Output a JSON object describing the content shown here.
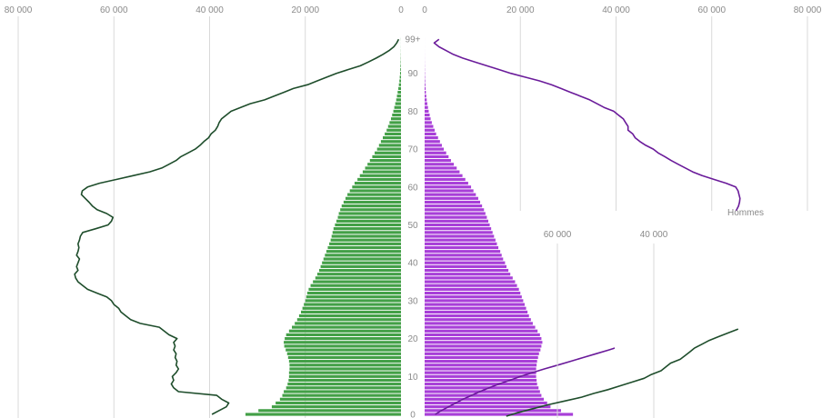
{
  "colors": {
    "women_bars": "#43a047",
    "men_bars": "#a83fd8",
    "women_line": "#1e4d2b",
    "men_line": "#6a1b9a",
    "grid": "#d9d9d9",
    "tick_text": "#8a8a8a"
  },
  "chart_data": {
    "type": "bar",
    "orientation": "horizontal-population-pyramid",
    "x_ticks_left": [
      "80 000",
      "60 000",
      "40 000",
      "20 000",
      "0"
    ],
    "x_ticks_right": [
      "0",
      "20 000",
      "40 000",
      "60 000",
      "80 000"
    ],
    "age_ticks": [
      "0",
      "10",
      "20",
      "30",
      "40",
      "50",
      "60",
      "70",
      "80",
      "90",
      "99+"
    ],
    "xlim": [
      0,
      80000
    ],
    "age_range": [
      0,
      99
    ],
    "inset_cut": {
      "label": "Hommes",
      "ticks": [
        "60 000",
        "40 000"
      ]
    },
    "series": [
      {
        "side": "left",
        "kind": "bars",
        "values": [
          32500,
          29800,
          27000,
          26200,
          25300,
          24800,
          24500,
          24000,
          23700,
          23500,
          23400,
          23400,
          23300,
          23300,
          23400,
          23600,
          23800,
          24100,
          24400,
          24500,
          24300,
          24000,
          23400,
          22800,
          22200,
          21700,
          21300,
          20900,
          20600,
          20300,
          20000,
          19800,
          19600,
          19300,
          18900,
          18400,
          17900,
          17500,
          17100,
          16800,
          16500,
          16200,
          15900,
          15600,
          15300,
          15000,
          14700,
          14500,
          14300,
          14100,
          13800,
          13500,
          13200,
          13000,
          12700,
          12400,
          12000,
          11600,
          11200,
          10700,
          10200,
          9700,
          9100,
          8600,
          8000,
          7500,
          7000,
          6500,
          6000,
          5500,
          5000,
          4600,
          4200,
          3800,
          3400,
          3000,
          2700,
          2400,
          2100,
          1850,
          1600,
          1400,
          1200,
          1000,
          850,
          700,
          560,
          440,
          340,
          260,
          200,
          150,
          110,
          80,
          55,
          38,
          25,
          15,
          8,
          20
        ]
      },
      {
        "side": "right",
        "kind": "bars",
        "values": [
          31000,
          28500,
          26300,
          25600,
          24900,
          24400,
          24100,
          23800,
          23500,
          23400,
          23300,
          23300,
          23300,
          23400,
          23500,
          23700,
          23900,
          24200,
          24400,
          24600,
          24400,
          24100,
          23600,
          23100,
          22600,
          22200,
          21800,
          21500,
          21200,
          20900,
          20600,
          20300,
          20000,
          19700,
          19300,
          18900,
          18400,
          17900,
          17500,
          17100,
          16800,
          16400,
          16100,
          15800,
          15400,
          15100,
          14800,
          14500,
          14200,
          13900,
          13600,
          13300,
          13000,
          12700,
          12400,
          12000,
          11600,
          11200,
          10700,
          10200,
          9700,
          9100,
          8500,
          7900,
          7300,
          6700,
          6100,
          5500,
          5000,
          4500,
          4000,
          3600,
          3200,
          2800,
          2400,
          2100,
          1800,
          1500,
          1250,
          1050,
          850,
          700,
          560,
          440,
          340,
          260,
          200,
          150,
          110,
          80,
          58,
          40,
          28,
          18,
          12,
          8,
          5,
          3,
          2,
          3
        ]
      },
      {
        "side": "left",
        "kind": "line",
        "points": [
          [
            39500,
            0
          ],
          [
            38000,
            1
          ],
          [
            36500,
            2
          ],
          [
            36000,
            3
          ],
          [
            37500,
            4
          ],
          [
            38500,
            5
          ],
          [
            46500,
            6
          ],
          [
            47500,
            7
          ],
          [
            48000,
            8
          ],
          [
            47500,
            9
          ],
          [
            47800,
            10
          ],
          [
            47000,
            11
          ],
          [
            46500,
            12
          ],
          [
            47000,
            13
          ],
          [
            46800,
            14
          ],
          [
            47200,
            15
          ],
          [
            47000,
            16
          ],
          [
            47500,
            17
          ],
          [
            47200,
            18
          ],
          [
            47500,
            19
          ],
          [
            46800,
            20
          ],
          [
            48500,
            21
          ],
          [
            49500,
            22
          ],
          [
            50500,
            23
          ],
          [
            54500,
            24
          ],
          [
            56500,
            25
          ],
          [
            57500,
            26
          ],
          [
            58500,
            27
          ],
          [
            59000,
            28
          ],
          [
            60000,
            29
          ],
          [
            60500,
            30
          ],
          [
            61500,
            31
          ],
          [
            63500,
            32
          ],
          [
            65500,
            33
          ],
          [
            66500,
            34
          ],
          [
            67500,
            35
          ],
          [
            68000,
            36
          ],
          [
            68200,
            37
          ],
          [
            67500,
            38
          ],
          [
            67800,
            39
          ],
          [
            67500,
            40
          ],
          [
            67200,
            41
          ],
          [
            67800,
            42
          ],
          [
            67500,
            43
          ],
          [
            67300,
            44
          ],
          [
            67500,
            45
          ],
          [
            67200,
            46
          ],
          [
            67000,
            47
          ],
          [
            66500,
            48
          ],
          [
            63800,
            49
          ],
          [
            61200,
            50
          ],
          [
            60500,
            51
          ],
          [
            60200,
            52
          ],
          [
            61500,
            53
          ],
          [
            63500,
            54
          ],
          [
            64500,
            55
          ],
          [
            65200,
            56
          ],
          [
            66000,
            57
          ],
          [
            66800,
            58
          ],
          [
            66600,
            59
          ],
          [
            65500,
            60
          ],
          [
            63000,
            61
          ],
          [
            59500,
            62
          ],
          [
            56000,
            63
          ],
          [
            52500,
            64
          ],
          [
            50000,
            65
          ],
          [
            48500,
            66
          ],
          [
            47000,
            67
          ],
          [
            46000,
            68
          ],
          [
            44500,
            69
          ],
          [
            43000,
            70
          ],
          [
            42000,
            71
          ],
          [
            41200,
            72
          ],
          [
            40200,
            73
          ],
          [
            39700,
            74
          ],
          [
            38800,
            75
          ],
          [
            38300,
            76
          ],
          [
            38000,
            77
          ],
          [
            37500,
            78
          ],
          [
            36500,
            79
          ],
          [
            35500,
            80
          ],
          [
            33500,
            81
          ],
          [
            31500,
            82
          ],
          [
            28500,
            83
          ],
          [
            26500,
            84
          ],
          [
            24500,
            85
          ],
          [
            22500,
            86
          ],
          [
            19500,
            87
          ],
          [
            17500,
            88
          ],
          [
            15500,
            89
          ],
          [
            13500,
            90
          ],
          [
            11000,
            91
          ],
          [
            8500,
            92
          ],
          [
            6800,
            93
          ],
          [
            5200,
            94
          ],
          [
            3800,
            95
          ],
          [
            2500,
            96
          ],
          [
            1500,
            97
          ],
          [
            900,
            98
          ],
          [
            500,
            99
          ]
        ]
      },
      {
        "side": "right",
        "kind": "line",
        "points": [
          [
            2200,
            0
          ],
          [
            3500,
            1
          ],
          [
            5000,
            2
          ],
          [
            6500,
            3
          ],
          [
            8000,
            4
          ],
          [
            9800,
            5
          ],
          [
            11500,
            6
          ],
          [
            13500,
            7
          ],
          [
            15500,
            8
          ],
          [
            17800,
            9
          ],
          [
            20000,
            10
          ],
          [
            22500,
            11
          ],
          [
            25000,
            12
          ],
          [
            27800,
            13
          ],
          [
            30500,
            14
          ],
          [
            33200,
            15
          ],
          [
            35800,
            16
          ],
          [
            38500,
            17
          ],
          [
            41000,
            18
          ],
          [
            43000,
            19
          ],
          [
            44500,
            20
          ],
          [
            45500,
            21
          ],
          [
            46800,
            22
          ],
          [
            48000,
            23
          ],
          [
            49000,
            24
          ],
          [
            50000,
            25
          ],
          [
            50800,
            26
          ],
          [
            51600,
            27
          ],
          [
            52500,
            28
          ],
          [
            53500,
            29
          ],
          [
            54500,
            30
          ],
          [
            55200,
            31
          ],
          [
            56000,
            32
          ],
          [
            57000,
            33
          ],
          [
            58000,
            34
          ],
          [
            58500,
            35
          ],
          [
            59000,
            36
          ],
          [
            59600,
            37
          ],
          [
            60200,
            38
          ],
          [
            60800,
            39
          ],
          [
            61400,
            40
          ],
          [
            62000,
            41
          ],
          [
            62500,
            42
          ],
          [
            63000,
            43
          ],
          [
            63500,
            44
          ],
          [
            64000,
            45
          ],
          [
            64400,
            46
          ],
          [
            64800,
            47
          ],
          [
            65200,
            48
          ],
          [
            65500,
            49
          ],
          [
            65700,
            50
          ],
          [
            65500,
            51
          ],
          [
            65000,
            52
          ],
          [
            64800,
            53
          ],
          [
            65200,
            54
          ],
          [
            65600,
            55
          ],
          [
            65800,
            56
          ],
          [
            65900,
            57
          ],
          [
            65700,
            58
          ],
          [
            65500,
            59
          ],
          [
            65000,
            60
          ],
          [
            63000,
            61
          ],
          [
            60500,
            62
          ],
          [
            58000,
            63
          ],
          [
            56000,
            64
          ],
          [
            54500,
            65
          ],
          [
            53000,
            66
          ],
          [
            51500,
            67
          ],
          [
            50200,
            68
          ],
          [
            48800,
            69
          ],
          [
            47800,
            70
          ],
          [
            46200,
            71
          ],
          [
            45000,
            72
          ],
          [
            44000,
            73
          ],
          [
            43500,
            74
          ],
          [
            42500,
            75
          ],
          [
            42500,
            76
          ],
          [
            42000,
            77
          ],
          [
            41500,
            78
          ],
          [
            40500,
            79
          ],
          [
            39500,
            80
          ],
          [
            37500,
            81
          ],
          [
            36000,
            82
          ],
          [
            34500,
            83
          ],
          [
            32500,
            84
          ],
          [
            30500,
            85
          ],
          [
            28500,
            86
          ],
          [
            26500,
            87
          ],
          [
            24000,
            88
          ],
          [
            21000,
            89
          ],
          [
            18000,
            90
          ],
          [
            15500,
            91
          ],
          [
            13000,
            92
          ],
          [
            10500,
            93
          ],
          [
            8000,
            94
          ],
          [
            6000,
            95
          ],
          [
            4500,
            96
          ],
          [
            3000,
            97
          ],
          [
            2000,
            98
          ],
          [
            3000,
            99
          ]
        ]
      },
      {
        "side": "inset",
        "kind": "line",
        "points": [
          [
            70600,
            0
          ],
          [
            68000,
            1
          ],
          [
            65000,
            2
          ],
          [
            62000,
            3
          ],
          [
            58500,
            4
          ],
          [
            55000,
            5
          ],
          [
            52500,
            6
          ],
          [
            49500,
            7
          ],
          [
            47000,
            8
          ],
          [
            44500,
            9
          ],
          [
            42000,
            10
          ],
          [
            40500,
            11
          ],
          [
            38500,
            12
          ],
          [
            37500,
            13
          ],
          [
            36500,
            14
          ],
          [
            34500,
            15
          ],
          [
            33500,
            16
          ],
          [
            32500,
            17
          ],
          [
            31500,
            18
          ],
          [
            30000,
            19
          ],
          [
            28500,
            20
          ],
          [
            26500,
            21
          ],
          [
            24500,
            22
          ],
          [
            22500,
            23
          ]
        ]
      }
    ]
  }
}
